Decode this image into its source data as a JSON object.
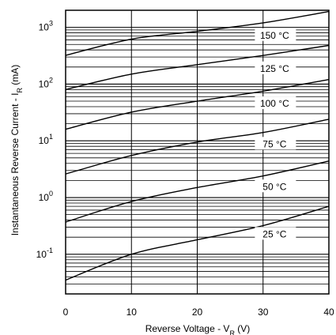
{
  "chart_data": {
    "type": "line",
    "xlabel": "Reverse Voltage - V",
    "xlabel_sub": "R",
    "xlabel_unit": " (V)",
    "ylabel": "Instantaneous Reverse Current - I",
    "ylabel_sub": "R",
    "ylabel_unit": " (mA)",
    "xlim": [
      0,
      40
    ],
    "ylim": [
      0.02,
      2000
    ],
    "y_scale": "log",
    "grid": true,
    "x_ticks": [
      "0",
      "10",
      "20",
      "30",
      "40"
    ],
    "y_ticks": [
      {
        "base": "10",
        "exp": "-1"
      },
      {
        "base": "10",
        "exp": "0"
      },
      {
        "base": "10",
        "exp": "1"
      },
      {
        "base": "10",
        "exp": "2"
      },
      {
        "base": "10",
        "exp": "3"
      }
    ],
    "series": [
      {
        "name": "25 °C",
        "x": [
          0,
          10,
          20,
          30,
          40
        ],
        "y": [
          0.035,
          0.1,
          0.18,
          0.32,
          0.7
        ]
      },
      {
        "name": "50 °C",
        "x": [
          0,
          10,
          20,
          30,
          40
        ],
        "y": [
          0.37,
          0.85,
          1.5,
          2.4,
          4.4
        ]
      },
      {
        "name": "75 °C",
        "x": [
          0,
          10,
          20,
          30,
          40
        ],
        "y": [
          2.6,
          5.5,
          9.5,
          14,
          24
        ]
      },
      {
        "name": "100 °C",
        "x": [
          0,
          10,
          20,
          30,
          40
        ],
        "y": [
          16,
          32,
          50,
          75,
          120
        ]
      },
      {
        "name": "125 °C",
        "x": [
          0,
          10,
          20,
          30,
          40
        ],
        "y": [
          80,
          150,
          220,
          320,
          480
        ]
      },
      {
        "name": "150 °C",
        "x": [
          0,
          10,
          20,
          30,
          40
        ],
        "y": [
          320,
          620,
          850,
          1200,
          1900
        ]
      }
    ]
  }
}
